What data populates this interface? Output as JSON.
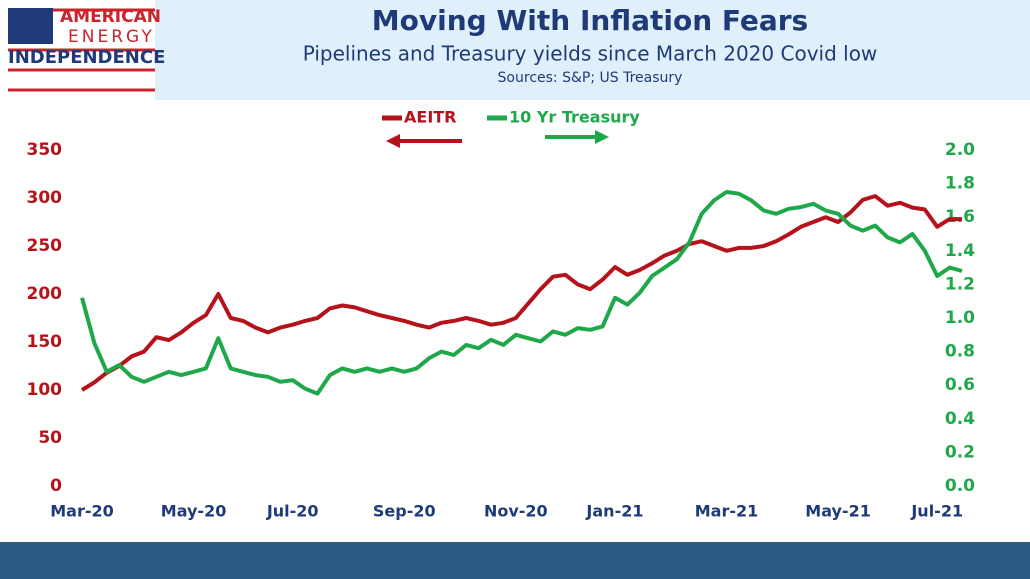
{
  "logo": [
    "AMERICAN",
    "ENERGY",
    "INDEPENDENCE"
  ],
  "chart_data": {
    "type": "line",
    "title": "Moving With Inflation Fears",
    "subtitle": "Pipelines and Treasury yields since March 2020 Covid low",
    "source": "Sources: S&P; US Treasury",
    "categories": [
      "Mar-20",
      null,
      null,
      null,
      null,
      null,
      null,
      null,
      null,
      "May-20",
      null,
      null,
      null,
      null,
      null,
      null,
      null,
      "Jul-20",
      null,
      null,
      null,
      null,
      null,
      null,
      null,
      null,
      "Sep-20",
      null,
      null,
      null,
      null,
      null,
      null,
      null,
      null,
      "Nov-20",
      null,
      null,
      null,
      null,
      null,
      null,
      null,
      "Jan-21",
      null,
      null,
      null,
      null,
      null,
      null,
      null,
      null,
      "Mar-21",
      null,
      null,
      null,
      null,
      null,
      null,
      null,
      null,
      "May-21",
      null,
      null,
      null,
      null,
      null,
      null,
      null,
      "Jul-21",
      null,
      null
    ],
    "series": [
      {
        "name": "AEITR",
        "color": "#b5121b",
        "axis": "y",
        "values": [
          100,
          108,
          118,
          125,
          135,
          140,
          155,
          152,
          160,
          170,
          178,
          200,
          175,
          172,
          165,
          160,
          165,
          168,
          172,
          175,
          185,
          188,
          186,
          182,
          178,
          175,
          172,
          168,
          165,
          170,
          172,
          175,
          172,
          168,
          170,
          175,
          190,
          205,
          218,
          220,
          210,
          205,
          215,
          228,
          220,
          225,
          232,
          240,
          245,
          252,
          255,
          250,
          245,
          248,
          248,
          250,
          255,
          262,
          270,
          275,
          280,
          275,
          285,
          298,
          302,
          292,
          295,
          290,
          288,
          270,
          278,
          278
        ]
      },
      {
        "name": "10 Yr Treasury",
        "color": "#1ea84a",
        "axis": "y2",
        "values": [
          1.12,
          0.85,
          0.68,
          0.72,
          0.65,
          0.62,
          0.65,
          0.68,
          0.66,
          0.68,
          0.7,
          0.88,
          0.7,
          0.68,
          0.66,
          0.65,
          0.62,
          0.63,
          0.58,
          0.55,
          0.66,
          0.7,
          0.68,
          0.7,
          0.68,
          0.7,
          0.68,
          0.7,
          0.76,
          0.8,
          0.78,
          0.84,
          0.82,
          0.87,
          0.84,
          0.9,
          0.88,
          0.86,
          0.92,
          0.9,
          0.94,
          0.93,
          0.95,
          1.12,
          1.08,
          1.15,
          1.25,
          1.3,
          1.35,
          1.45,
          1.62,
          1.7,
          1.75,
          1.74,
          1.7,
          1.64,
          1.62,
          1.65,
          1.66,
          1.68,
          1.64,
          1.62,
          1.55,
          1.52,
          1.55,
          1.48,
          1.45,
          1.5,
          1.4,
          1.25,
          1.3,
          1.28
        ]
      }
    ],
    "ylim": [
      0,
      350
    ],
    "yticks": [
      0,
      50,
      100,
      150,
      200,
      250,
      300,
      350
    ],
    "y2lim": [
      0,
      2
    ],
    "y2ticks": [
      {
        "value": 0,
        "label": "0.0"
      },
      0.2,
      0.4,
      0.6,
      0.8,
      {
        "value": 1,
        "label": "1.0"
      },
      1.2,
      1.4,
      1.6,
      1.8,
      {
        "value": 2,
        "label": "2.0"
      }
    ]
  }
}
